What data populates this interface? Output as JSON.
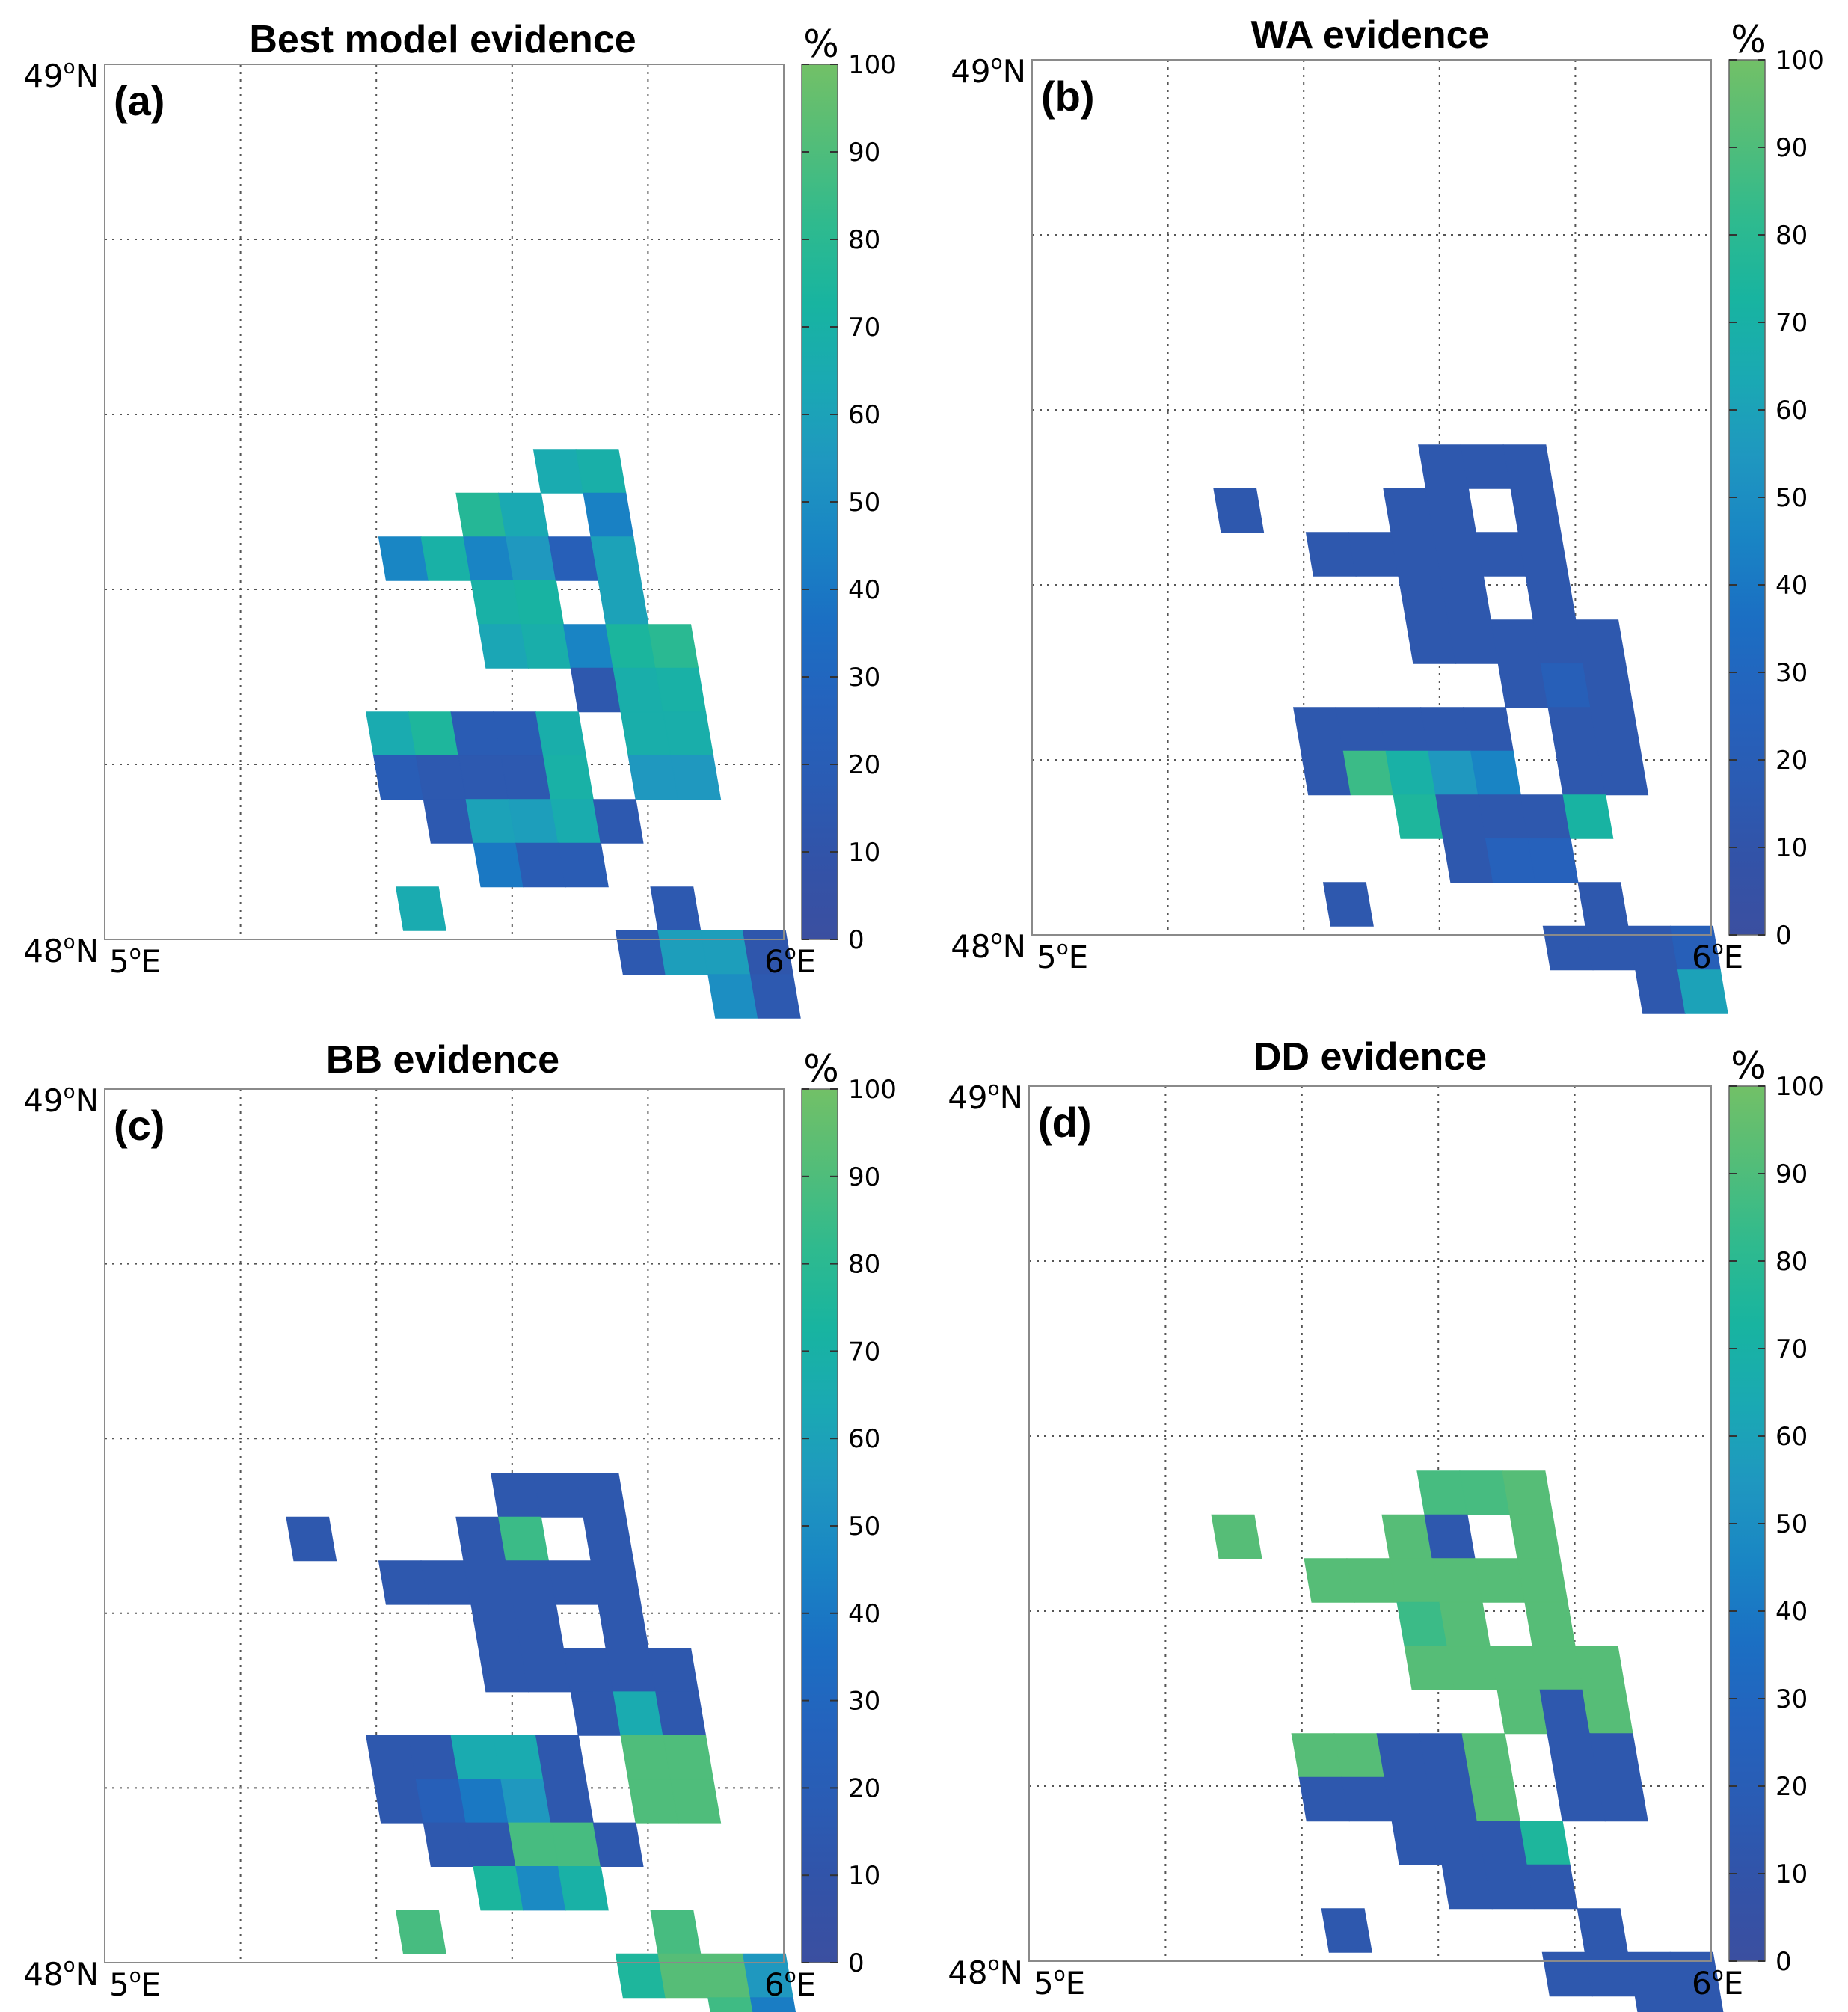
{
  "figure": {
    "colorbar_unit": "%",
    "colorbar_ticks": [
      "0",
      "10",
      "20",
      "30",
      "40",
      "50",
      "60",
      "70",
      "80",
      "90",
      "100"
    ],
    "lat_labels": {
      "top": {
        "num": "49",
        "deg": "o",
        "hem": "N"
      },
      "bottom": {
        "num": "48",
        "deg": "o",
        "hem": "N"
      }
    },
    "lon_labels": {
      "left": {
        "num": "5",
        "deg": "o",
        "hem": "E"
      },
      "right": {
        "num": "6",
        "deg": "o",
        "hem": "E"
      }
    },
    "colormap": [
      "#3b4fa0",
      "#3253a8",
      "#2a5cb4",
      "#2463bd",
      "#1b6fc3",
      "#1985c4",
      "#1f97c0",
      "#1aa9b3",
      "#18b4a0",
      "#2fba8e",
      "#52bd79",
      "#72c067"
    ]
  },
  "chart_data": [
    {
      "type": "heatmap",
      "title": "Best model evidence",
      "panel_label": "(a)",
      "x_range_deg_E": [
        5,
        6
      ],
      "y_range_deg_N": [
        48,
        49
      ],
      "grid_cell_deg": [
        0.0625,
        0.05
      ],
      "value_range": [
        0,
        100
      ],
      "cells": [
        [
          6,
          6,
          64
        ],
        [
          7,
          4,
          65
        ],
        [
          8,
          4,
          69
        ],
        [
          5,
          5,
          78
        ],
        [
          6,
          5,
          64
        ],
        [
          8,
          5,
          44
        ],
        [
          3,
          6,
          46
        ],
        [
          4,
          6,
          70
        ],
        [
          5,
          6,
          45
        ],
        [
          6,
          6,
          55
        ],
        [
          7,
          6,
          22
        ],
        [
          8,
          6,
          60
        ],
        [
          5,
          7,
          70
        ],
        [
          6,
          7,
          72
        ],
        [
          8,
          7,
          60
        ],
        [
          5,
          8,
          62
        ],
        [
          6,
          8,
          68
        ],
        [
          7,
          8,
          45
        ],
        [
          8,
          8,
          74
        ],
        [
          9,
          8,
          80
        ],
        [
          7,
          9,
          14
        ],
        [
          8,
          9,
          68
        ],
        [
          9,
          9,
          70
        ],
        [
          2,
          10,
          65
        ],
        [
          3,
          10,
          75
        ],
        [
          4,
          10,
          18
        ],
        [
          5,
          10,
          18
        ],
        [
          6,
          10,
          68
        ],
        [
          8,
          10,
          68
        ],
        [
          9,
          10,
          68
        ],
        [
          2,
          11,
          20
        ],
        [
          3,
          11,
          15
        ],
        [
          4,
          11,
          15
        ],
        [
          5,
          11,
          15
        ],
        [
          6,
          11,
          70
        ],
        [
          8,
          11,
          55
        ],
        [
          9,
          11,
          55
        ],
        [
          3,
          12,
          15
        ],
        [
          4,
          12,
          60
        ],
        [
          5,
          12,
          58
        ],
        [
          6,
          12,
          66
        ],
        [
          7,
          12,
          15
        ],
        [
          4,
          13,
          40
        ],
        [
          5,
          13,
          18
        ],
        [
          6,
          13,
          18
        ],
        [
          2,
          14,
          65
        ],
        [
          8,
          14,
          15
        ],
        [
          7,
          15,
          15
        ],
        [
          8,
          15,
          58
        ],
        [
          9,
          15,
          58
        ],
        [
          10,
          15,
          12
        ],
        [
          9,
          16,
          50
        ],
        [
          10,
          16,
          15
        ]
      ]
    },
    {
      "type": "heatmap",
      "title": "WA evidence",
      "panel_label": "(b)",
      "x_range_deg_E": [
        5,
        6
      ],
      "y_range_deg_N": [
        48,
        49
      ],
      "grid_cell_deg": [
        0.0625,
        0.05
      ],
      "value_range": [
        0,
        100
      ],
      "cells": [
        [
          6,
          4,
          14
        ],
        [
          7,
          4,
          14
        ],
        [
          8,
          4,
          14
        ],
        [
          1,
          5,
          14
        ],
        [
          5,
          5,
          14
        ],
        [
          6,
          5,
          14
        ],
        [
          8,
          5,
          14
        ],
        [
          3,
          6,
          14
        ],
        [
          4,
          6,
          14
        ],
        [
          5,
          6,
          14
        ],
        [
          6,
          6,
          14
        ],
        [
          7,
          6,
          14
        ],
        [
          8,
          6,
          14
        ],
        [
          5,
          7,
          14
        ],
        [
          6,
          7,
          14
        ],
        [
          8,
          7,
          14
        ],
        [
          5,
          8,
          14
        ],
        [
          6,
          8,
          14
        ],
        [
          7,
          8,
          14
        ],
        [
          8,
          8,
          14
        ],
        [
          9,
          8,
          14
        ],
        [
          7,
          9,
          14
        ],
        [
          8,
          9,
          22
        ],
        [
          9,
          9,
          14
        ],
        [
          2,
          10,
          14
        ],
        [
          3,
          10,
          14
        ],
        [
          4,
          10,
          14
        ],
        [
          5,
          10,
          14
        ],
        [
          6,
          10,
          14
        ],
        [
          8,
          10,
          14
        ],
        [
          9,
          10,
          14
        ],
        [
          2,
          11,
          14
        ],
        [
          3,
          11,
          85
        ],
        [
          4,
          11,
          70
        ],
        [
          5,
          11,
          55
        ],
        [
          6,
          11,
          45
        ],
        [
          8,
          11,
          14
        ],
        [
          9,
          11,
          14
        ],
        [
          4,
          12,
          75
        ],
        [
          5,
          12,
          14
        ],
        [
          6,
          12,
          14
        ],
        [
          7,
          12,
          14
        ],
        [
          8,
          12,
          72
        ],
        [
          5,
          13,
          14
        ],
        [
          6,
          13,
          25
        ],
        [
          7,
          13,
          25
        ],
        [
          2,
          14,
          14
        ],
        [
          8,
          14,
          14
        ],
        [
          7,
          15,
          14
        ],
        [
          8,
          15,
          14
        ],
        [
          9,
          15,
          14
        ],
        [
          10,
          15,
          22
        ],
        [
          9,
          16,
          14
        ],
        [
          10,
          16,
          60
        ]
      ]
    },
    {
      "type": "heatmap",
      "title": "BB evidence",
      "panel_label": "(c)",
      "x_range_deg_E": [
        5,
        6
      ],
      "y_range_deg_N": [
        48,
        49
      ],
      "grid_cell_deg": [
        0.0625,
        0.05
      ],
      "value_range": [
        0,
        100
      ],
      "cells": [
        [
          6,
          4,
          14
        ],
        [
          7,
          4,
          14
        ],
        [
          8,
          4,
          14
        ],
        [
          1,
          5,
          14
        ],
        [
          5,
          5,
          14
        ],
        [
          6,
          5,
          85
        ],
        [
          8,
          5,
          14
        ],
        [
          3,
          6,
          14
        ],
        [
          4,
          6,
          14
        ],
        [
          5,
          6,
          14
        ],
        [
          6,
          6,
          14
        ],
        [
          7,
          6,
          14
        ],
        [
          8,
          6,
          14
        ],
        [
          5,
          7,
          14
        ],
        [
          6,
          7,
          14
        ],
        [
          8,
          7,
          14
        ],
        [
          5,
          8,
          14
        ],
        [
          6,
          8,
          14
        ],
        [
          7,
          8,
          14
        ],
        [
          8,
          8,
          14
        ],
        [
          9,
          8,
          14
        ],
        [
          7,
          9,
          14
        ],
        [
          8,
          9,
          65
        ],
        [
          9,
          9,
          14
        ],
        [
          2,
          10,
          14
        ],
        [
          3,
          10,
          14
        ],
        [
          4,
          10,
          65
        ],
        [
          5,
          10,
          65
        ],
        [
          6,
          10,
          14
        ],
        [
          8,
          10,
          90
        ],
        [
          9,
          10,
          90
        ],
        [
          2,
          11,
          14
        ],
        [
          3,
          11,
          22
        ],
        [
          4,
          11,
          40
        ],
        [
          5,
          11,
          55
        ],
        [
          6,
          11,
          14
        ],
        [
          8,
          11,
          90
        ],
        [
          9,
          11,
          90
        ],
        [
          3,
          12,
          14
        ],
        [
          4,
          12,
          14
        ],
        [
          5,
          12,
          88
        ],
        [
          6,
          12,
          88
        ],
        [
          7,
          12,
          14
        ],
        [
          4,
          13,
          74
        ],
        [
          5,
          13,
          48
        ],
        [
          6,
          13,
          70
        ],
        [
          2,
          14,
          88
        ],
        [
          8,
          14,
          88
        ],
        [
          7,
          15,
          75
        ],
        [
          8,
          15,
          92
        ],
        [
          9,
          15,
          92
        ],
        [
          10,
          15,
          55
        ],
        [
          9,
          16,
          86
        ],
        [
          10,
          16,
          42
        ]
      ]
    },
    {
      "type": "heatmap",
      "title": "DD evidence",
      "panel_label": "(d)",
      "x_range_deg_E": [
        5,
        6
      ],
      "y_range_deg_N": [
        48,
        49
      ],
      "grid_cell_deg": [
        0.0625,
        0.05
      ],
      "value_range": [
        0,
        100
      ],
      "cells": [
        [
          6,
          4,
          88
        ],
        [
          7,
          4,
          88
        ],
        [
          8,
          4,
          92
        ],
        [
          1,
          5,
          92
        ],
        [
          5,
          5,
          92
        ],
        [
          6,
          5,
          14
        ],
        [
          8,
          5,
          92
        ],
        [
          3,
          6,
          92
        ],
        [
          4,
          6,
          92
        ],
        [
          5,
          6,
          92
        ],
        [
          6,
          6,
          92
        ],
        [
          7,
          6,
          92
        ],
        [
          8,
          6,
          92
        ],
        [
          5,
          7,
          85
        ],
        [
          6,
          7,
          92
        ],
        [
          8,
          7,
          92
        ],
        [
          5,
          8,
          92
        ],
        [
          6,
          8,
          92
        ],
        [
          7,
          8,
          92
        ],
        [
          8,
          8,
          92
        ],
        [
          9,
          8,
          92
        ],
        [
          7,
          9,
          92
        ],
        [
          8,
          9,
          14
        ],
        [
          9,
          9,
          92
        ],
        [
          2,
          10,
          92
        ],
        [
          3,
          10,
          92
        ],
        [
          4,
          10,
          14
        ],
        [
          5,
          10,
          14
        ],
        [
          6,
          10,
          92
        ],
        [
          8,
          10,
          14
        ],
        [
          9,
          10,
          14
        ],
        [
          2,
          11,
          14
        ],
        [
          3,
          11,
          14
        ],
        [
          4,
          11,
          14
        ],
        [
          5,
          11,
          14
        ],
        [
          6,
          11,
          92
        ],
        [
          8,
          11,
          14
        ],
        [
          9,
          11,
          14
        ],
        [
          4,
          12,
          14
        ],
        [
          5,
          12,
          14
        ],
        [
          6,
          12,
          14
        ],
        [
          7,
          12,
          75
        ],
        [
          5,
          13,
          14
        ],
        [
          6,
          13,
          14
        ],
        [
          7,
          13,
          14
        ],
        [
          2,
          14,
          14
        ],
        [
          8,
          14,
          14
        ],
        [
          7,
          15,
          14
        ],
        [
          8,
          15,
          14
        ],
        [
          9,
          15,
          14
        ],
        [
          10,
          15,
          14
        ],
        [
          9,
          16,
          14
        ],
        [
          10,
          16,
          14
        ]
      ]
    }
  ]
}
